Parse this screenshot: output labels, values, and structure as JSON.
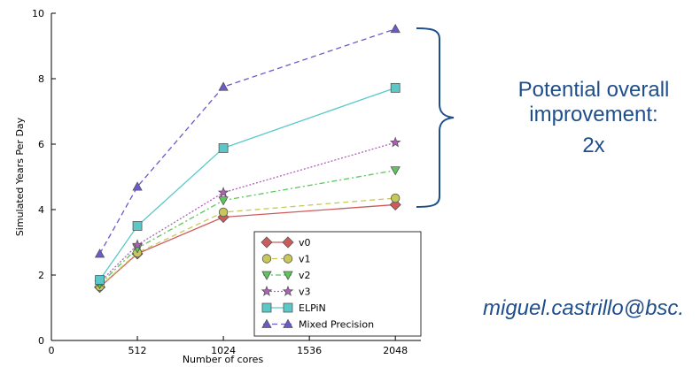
{
  "chart_data": {
    "type": "line",
    "title": "",
    "xlabel": "Number of cores",
    "ylabel": "Simulated Years Per Day",
    "xlim": [
      0,
      2200
    ],
    "ylim": [
      0,
      10
    ],
    "x_ticks": [
      0,
      512,
      1024,
      1536,
      2048
    ],
    "y_ticks": [
      0,
      2,
      4,
      6,
      8,
      10
    ],
    "grid": false,
    "legend_position": "lower-right",
    "x": [
      288,
      512,
      1024,
      2048
    ],
    "series": [
      {
        "name": "v0",
        "values": [
          1.63,
          2.65,
          3.77,
          4.15
        ],
        "color": "#cc5c5c",
        "marker": "diamond",
        "linestyle": "solid"
      },
      {
        "name": "v1",
        "values": [
          1.65,
          2.68,
          3.92,
          4.35
        ],
        "color": "#c8c85a",
        "marker": "circle",
        "linestyle": "dashed"
      },
      {
        "name": "v2",
        "values": [
          1.72,
          2.82,
          4.28,
          5.2
        ],
        "color": "#5ac85a",
        "marker": "triangle-down",
        "linestyle": "dashdot"
      },
      {
        "name": "v3",
        "values": [
          1.78,
          2.92,
          4.52,
          6.05
        ],
        "color": "#b060b8",
        "marker": "star",
        "linestyle": "dotted"
      },
      {
        "name": "ELPiN",
        "values": [
          1.85,
          3.5,
          5.88,
          7.72
        ],
        "color": "#5ac8c8",
        "marker": "square",
        "linestyle": "solid"
      },
      {
        "name": "Mixed Precision",
        "values": [
          2.65,
          4.7,
          7.75,
          9.52
        ],
        "color": "#6a5acd",
        "marker": "triangle-up",
        "linestyle": "dashed"
      }
    ]
  },
  "annotation": {
    "line1": "Potential overall",
    "line2": "improvement:",
    "value": "2x",
    "color": "#1f4e8c"
  },
  "email": "miguel.castrillo@bsc."
}
